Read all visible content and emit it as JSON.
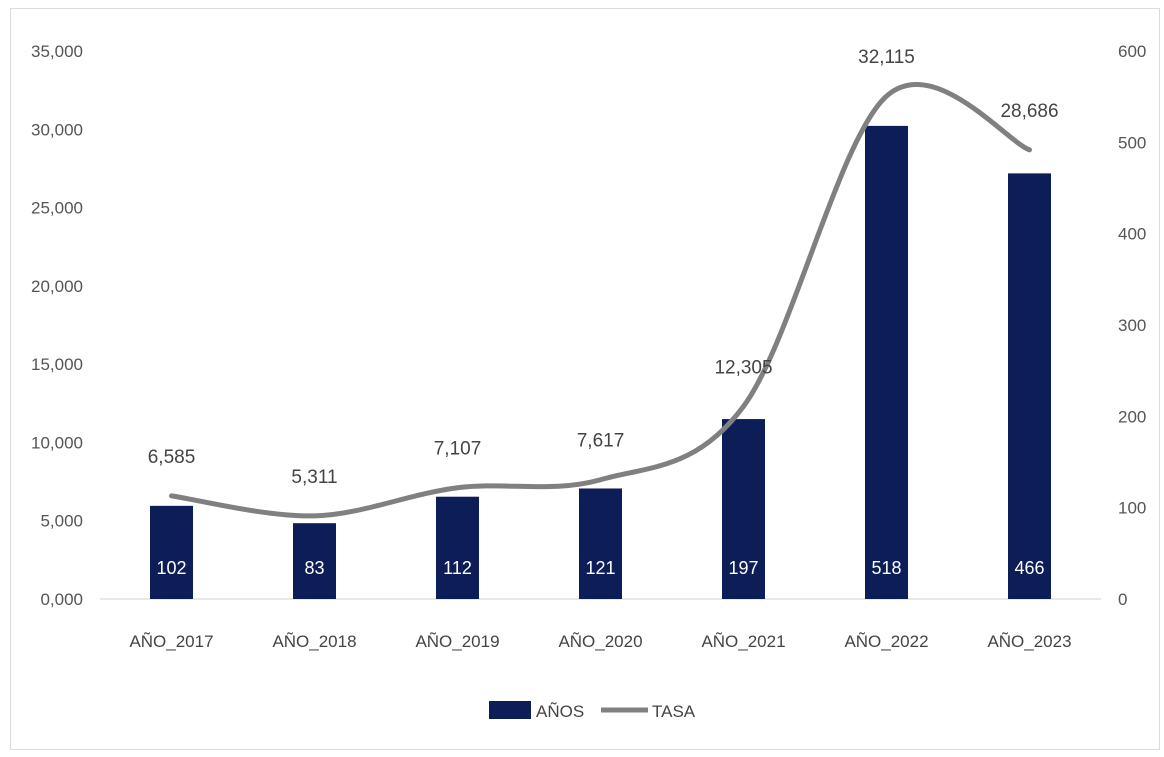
{
  "chart_data": {
    "type": "bar",
    "categories": [
      "AÑO_2017",
      "AÑO_2018",
      "AÑO_2019",
      "AÑO_2020",
      "AÑO_2021",
      "AÑO_2022",
      "AÑO_2023"
    ],
    "series": [
      {
        "name": "AÑOS",
        "chart_type": "bar",
        "axis": "right",
        "values": [
          102,
          83,
          112,
          121,
          197,
          518,
          466
        ],
        "data_labels": [
          "102",
          "83",
          "112",
          "121",
          "197",
          "518",
          "466"
        ],
        "color": "#0d1d57"
      },
      {
        "name": "TASA",
        "chart_type": "line",
        "axis": "left",
        "values": [
          6585,
          5311,
          7107,
          7617,
          12305,
          32115,
          28686
        ],
        "data_labels": [
          "6,585",
          "5,311",
          "7,107",
          "7,617",
          "12,305",
          "32,115",
          "28,686"
        ],
        "color": "#808080"
      }
    ],
    "left_axis": {
      "ylim": [
        0,
        35000
      ],
      "ticks": [
        "0,000",
        "5,000",
        "10,000",
        "15,000",
        "20,000",
        "25,000",
        "30,000",
        "35,000"
      ]
    },
    "right_axis": {
      "ylim": [
        0,
        600
      ],
      "ticks": [
        "0",
        "100",
        "200",
        "300",
        "400",
        "500",
        "600"
      ]
    },
    "grid": false,
    "legend_position": "bottom",
    "title": "",
    "xlabel": "",
    "ylabel": ""
  }
}
